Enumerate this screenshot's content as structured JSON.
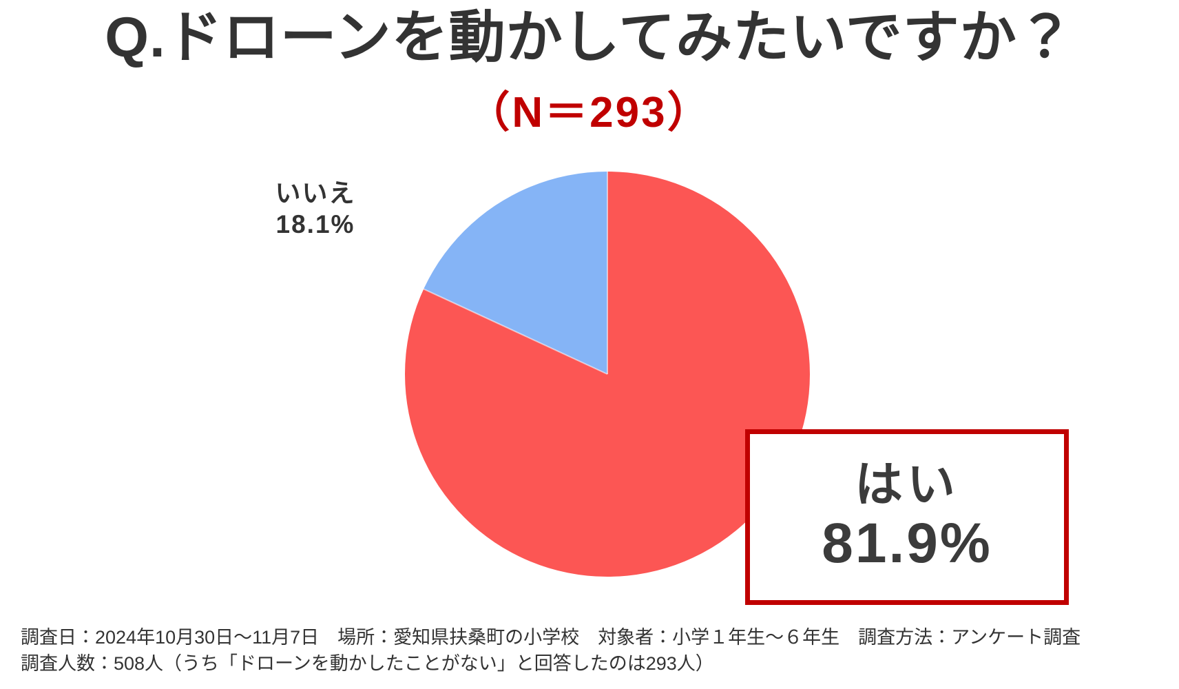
{
  "header": {
    "title": "Q.ドローンを動かしてみたいですか？",
    "n_label": "（N＝293）",
    "n_color": "#C00000",
    "title_color": "#333333"
  },
  "chart_data": {
    "type": "pie",
    "title": "Q.ドローンを動かしてみたいですか？",
    "subtitle": "（N＝293）",
    "n": 293,
    "categories": [
      "はい",
      "いいえ"
    ],
    "values": [
      81.9,
      18.1
    ],
    "unit": "%",
    "colors": [
      "#FC5654",
      "#85B4F6"
    ],
    "start": "12時の位置から時計回り",
    "legend_position": "none (labels placed beside slices)"
  },
  "no_label": {
    "name": "いいえ",
    "pct": "18.1%"
  },
  "yes_box": {
    "name": "はい",
    "pct": "81.9%",
    "border_color": "#C00000",
    "background": "#ffffff"
  },
  "footer": {
    "line1": "調査日：2024年10月30日〜11月7日　場所：愛知県扶桑町の小学校　対象者：小学１年生〜６年生　調査方法：アンケート調査",
    "line2": "調査人数：508人（うち「ドローンを動かしたことがない」と回答したのは293人）"
  }
}
